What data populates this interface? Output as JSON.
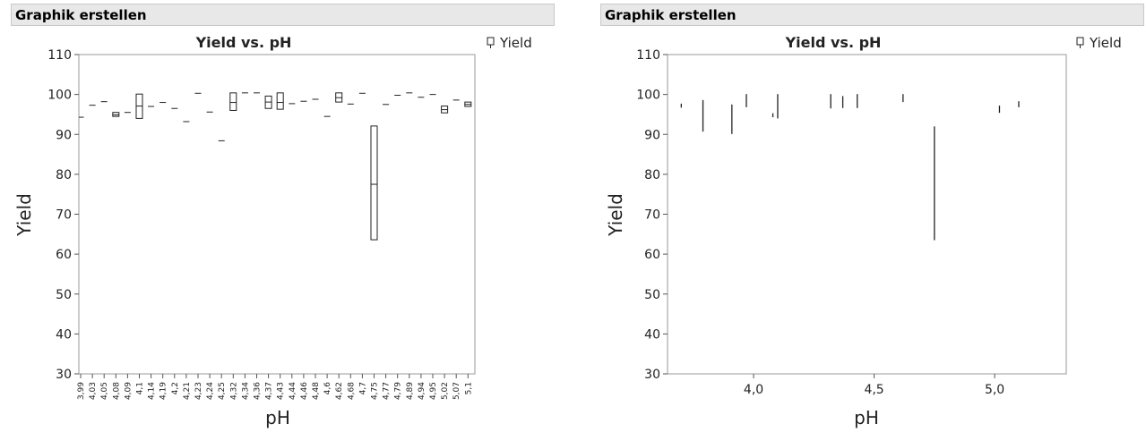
{
  "panels": [
    {
      "header": "Graphik erstellen"
    },
    {
      "header": "Graphik erstellen"
    }
  ],
  "chart_data": [
    {
      "type": "box",
      "title": "Yield vs. pH",
      "xlabel": "pH",
      "ylabel": "Yield",
      "legend": [
        "Yield"
      ],
      "legend_position": "top-right",
      "ylim": [
        30,
        110
      ],
      "yticks": [
        30,
        40,
        50,
        60,
        70,
        80,
        90,
        100,
        110
      ],
      "categories": [
        "3,99",
        "4,03",
        "4,05",
        "4,08",
        "4,09",
        "4,1",
        "4,14",
        "4,19",
        "4,2",
        "4,21",
        "4,23",
        "4,24",
        "4,25",
        "4,32",
        "4,34",
        "4,36",
        "4,37",
        "4,43",
        "4,44",
        "4,46",
        "4,48",
        "4,6",
        "4,62",
        "4,68",
        "4,7",
        "4,75",
        "4,77",
        "4,79",
        "4,89",
        "4,94",
        "4,95",
        "5,02",
        "5,07",
        "5,1"
      ],
      "boxes": [
        [
          94.3,
          94.3,
          94.3
        ],
        [
          97.3,
          97.3,
          97.3
        ],
        [
          98.2,
          98.2,
          98.2
        ],
        [
          94.5,
          94.9,
          95.5
        ],
        [
          95.5,
          95.5,
          95.5
        ],
        [
          94.0,
          97.1,
          100.1
        ],
        [
          97.0,
          97.0,
          97.0
        ],
        [
          98.0,
          98.0,
          98.0
        ],
        [
          96.5,
          96.5,
          96.5
        ],
        [
          93.2,
          93.2,
          93.2
        ],
        [
          100.3,
          100.3,
          100.3
        ],
        [
          95.6,
          95.6,
          95.6
        ],
        [
          88.4,
          88.4,
          88.4
        ],
        [
          96.0,
          98.0,
          100.4
        ],
        [
          100.4,
          100.4,
          100.4
        ],
        [
          100.4,
          100.4,
          100.4
        ],
        [
          96.5,
          98.1,
          99.6
        ],
        [
          96.3,
          98.0,
          100.4
        ],
        [
          97.7,
          97.7,
          97.7
        ],
        [
          98.3,
          98.3,
          98.3
        ],
        [
          98.8,
          98.8,
          98.8
        ],
        [
          94.5,
          94.5,
          94.5
        ],
        [
          98.1,
          99.2,
          100.4
        ],
        [
          97.6,
          97.6,
          97.6
        ],
        [
          100.3,
          100.3,
          100.3
        ],
        [
          63.6,
          77.5,
          92.1
        ],
        [
          97.5,
          97.5,
          97.5
        ],
        [
          99.8,
          99.8,
          99.8
        ],
        [
          100.4,
          100.4,
          100.4
        ],
        [
          99.3,
          99.3,
          99.3
        ],
        [
          100.0,
          100.0,
          100.0
        ],
        [
          95.4,
          96.2,
          97.1
        ],
        [
          98.6,
          98.6,
          98.6
        ],
        [
          97.0,
          97.5,
          98.1
        ]
      ]
    },
    {
      "type": "range",
      "title": "Yield vs. pH",
      "xlabel": "pH",
      "ylabel": "Yield",
      "legend": [
        "Yield"
      ],
      "legend_position": "top-right",
      "ylim": [
        30,
        110
      ],
      "xlim": [
        3.643,
        5.297
      ],
      "yticks": [
        30,
        40,
        50,
        60,
        70,
        80,
        90,
        100,
        110
      ],
      "xticks": [
        {
          "v": 4.0,
          "label": "4,0"
        },
        {
          "v": 4.5,
          "label": "4,5"
        },
        {
          "v": 5.0,
          "label": "5,0"
        }
      ],
      "ranges": [
        {
          "x": 3.7,
          "min": 96.7,
          "max": 97.7
        },
        {
          "x": 3.79,
          "min": 90.7,
          "max": 98.6
        },
        {
          "x": 3.91,
          "min": 90.1,
          "max": 97.5
        },
        {
          "x": 3.97,
          "min": 96.8,
          "max": 100.1
        },
        {
          "x": 4.08,
          "min": 94.3,
          "max": 95.3
        },
        {
          "x": 4.1,
          "min": 94.0,
          "max": 100.1
        },
        {
          "x": 4.32,
          "min": 96.5,
          "max": 100.1
        },
        {
          "x": 4.37,
          "min": 96.6,
          "max": 99.6
        },
        {
          "x": 4.43,
          "min": 96.6,
          "max": 100.1
        },
        {
          "x": 4.62,
          "min": 98.1,
          "max": 100.1
        },
        {
          "x": 4.75,
          "min": 63.5,
          "max": 92.0
        },
        {
          "x": 5.02,
          "min": 95.4,
          "max": 97.2
        },
        {
          "x": 5.1,
          "min": 96.8,
          "max": 98.3
        }
      ]
    }
  ]
}
